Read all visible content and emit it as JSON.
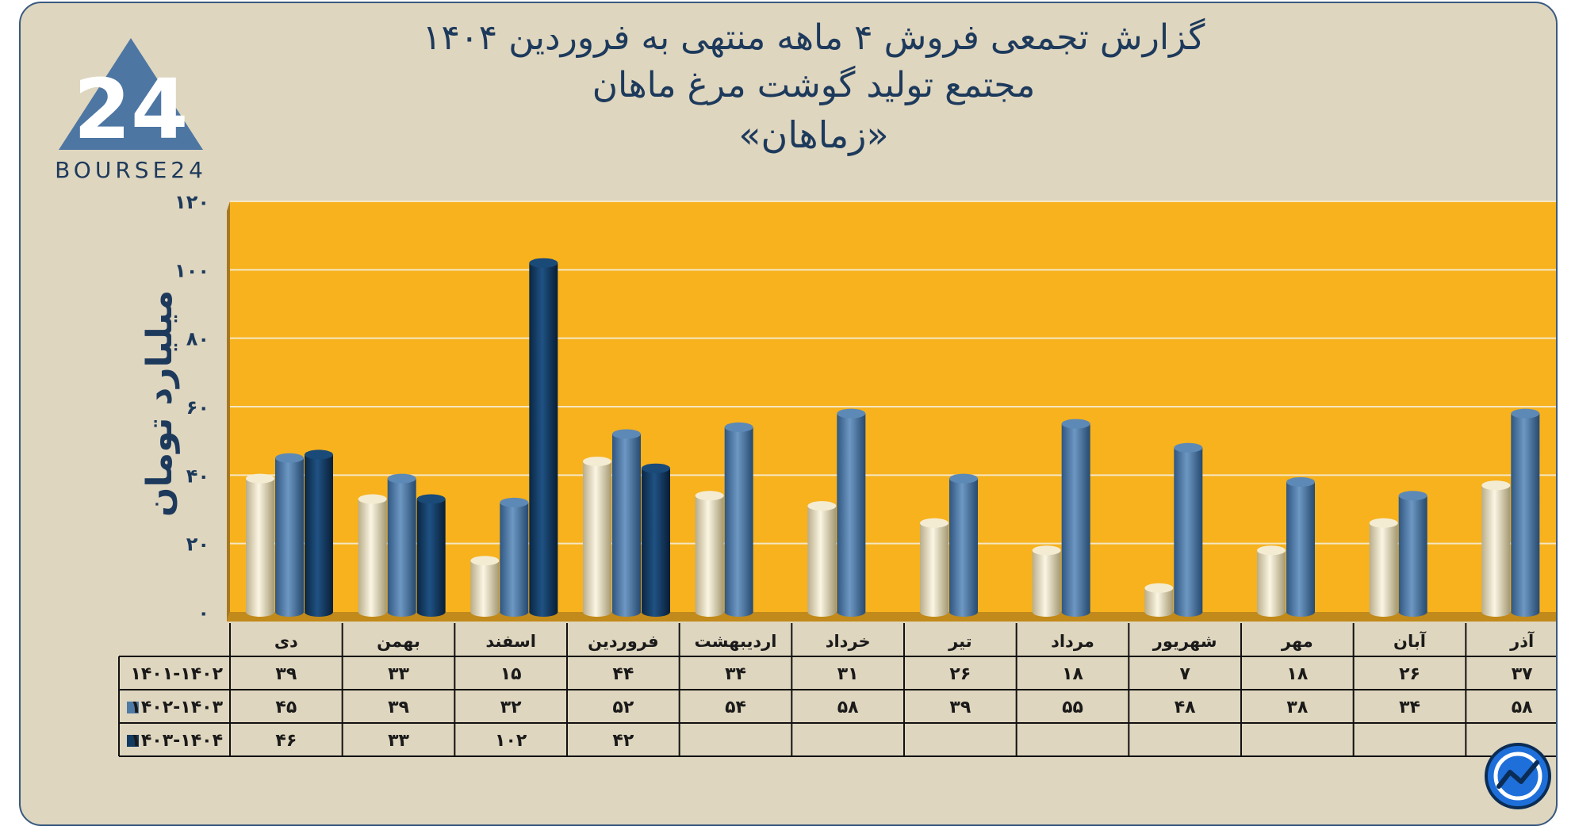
{
  "title_lines": [
    "گزارش تجمعی فروش ۴ ماهه منتهی به فروردین ۱۴۰۴",
    "مجتمع تولید گوشت مرغ ماهان",
    "«زماهان»"
  ],
  "logo": {
    "text": "BOURSE24",
    "mark": "24"
  },
  "corner_logo": {
    "icon": "trend-arrow-circle-icon"
  },
  "colors": {
    "plot_bg": "#f7b21e",
    "plot_side": "#a7781d",
    "series_1": "#ece3c4",
    "series_2": "#4e7aa6",
    "series_3": "#123b63",
    "frame": "#dfd6bf"
  },
  "chart_data": {
    "type": "bar",
    "ylabel": "میلیارد تومان",
    "ylim": [
      0,
      120
    ],
    "yticks": [
      "۰",
      "۲۰",
      "۴۰",
      "۶۰",
      "۸۰",
      "۱۰۰",
      "۱۲۰"
    ],
    "ytick_values": [
      0,
      20,
      40,
      60,
      80,
      100,
      120
    ],
    "grid": true,
    "categories": [
      "دی",
      "بهمن",
      "اسفند",
      "فروردین",
      "اردیبهشت",
      "خرداد",
      "تیر",
      "مرداد",
      "شهریور",
      "مهر",
      "آبان",
      "آذر"
    ],
    "series": [
      {
        "name": "۱۴۰۱-۱۴۰۲",
        "values": [
          39,
          33,
          15,
          44,
          34,
          31,
          26,
          18,
          7,
          18,
          26,
          37
        ],
        "labels": [
          "۳۹",
          "۳۳",
          "۱۵",
          "۴۴",
          "۳۴",
          "۳۱",
          "۲۶",
          "۱۸",
          "۷",
          "۱۸",
          "۲۶",
          "۳۷"
        ]
      },
      {
        "name": "۱۴۰۲-۱۴۰۳",
        "values": [
          45,
          39,
          32,
          52,
          54,
          58,
          39,
          55,
          48,
          38,
          34,
          58
        ],
        "labels": [
          "۴۵",
          "۳۹",
          "۳۲",
          "۵۲",
          "۵۴",
          "۵۸",
          "۳۹",
          "۵۵",
          "۴۸",
          "۳۸",
          "۳۴",
          "۵۸"
        ]
      },
      {
        "name": "۱۴۰۳-۱۴۰۴",
        "values": [
          46,
          33,
          102,
          42,
          null,
          null,
          null,
          null,
          null,
          null,
          null,
          null
        ],
        "labels": [
          "۴۶",
          "۳۳",
          "۱۰۲",
          "۴۲",
          "",
          "",
          "",
          "",
          "",
          "",
          "",
          ""
        ]
      }
    ]
  }
}
